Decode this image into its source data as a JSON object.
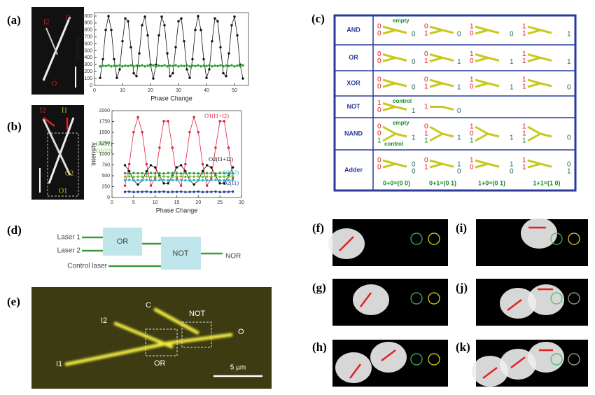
{
  "panel_labels": [
    "(a)",
    "(b)",
    "(c)",
    "(d)",
    "(e)",
    "(f)",
    "(g)",
    "(h)",
    "(i)",
    "(j)",
    "(k)"
  ],
  "chart_data": [
    {
      "type": "line",
      "xlabel": "Phase Change",
      "ylabel": "Intensity",
      "xlim": [
        0,
        55
      ],
      "xticks": [
        0,
        10,
        20,
        30,
        40,
        50
      ],
      "ylim": [
        0,
        1050
      ],
      "yticks": [
        0,
        100,
        200,
        300,
        400,
        500,
        600,
        700,
        800,
        900,
        1000
      ],
      "x": [
        2,
        3,
        4,
        5,
        6,
        7,
        8,
        9,
        10,
        11,
        12,
        13,
        14,
        15,
        16,
        17,
        18,
        19,
        20,
        21,
        22,
        23,
        24,
        25,
        26,
        27,
        28,
        29,
        30,
        31,
        32,
        33,
        34,
        35,
        36,
        37,
        38,
        39,
        40,
        41,
        42,
        43,
        44,
        45,
        46,
        47,
        48,
        49,
        50,
        51,
        52,
        53
      ],
      "series": [
        {
          "color": "#111111",
          "values": [
            109,
            378,
            800,
            1000,
            800,
            378,
            109,
            232,
            638,
            966,
            924,
            550,
            176,
            134,
            462,
            868,
            991,
            722,
            300,
            100,
            300,
            722,
            991,
            868,
            462,
            134,
            176,
            550,
            924,
            966,
            638,
            232,
            109,
            378,
            800,
            1000,
            800,
            378,
            109,
            232,
            638,
            966,
            924,
            550,
            176,
            134,
            462,
            868,
            991,
            722,
            300,
            100
          ]
        },
        {
          "color": "#22a02a",
          "values": [
            275,
            285,
            280,
            290,
            275,
            285,
            280,
            290,
            275,
            285,
            280,
            290,
            275,
            285,
            280,
            290,
            275,
            285,
            280,
            290,
            275,
            285,
            280,
            290,
            275,
            285,
            280,
            290,
            275,
            285,
            280,
            290,
            275,
            285,
            280,
            290,
            275,
            285,
            280,
            290,
            275,
            285,
            280,
            290,
            275,
            285,
            280,
            290,
            275,
            285,
            280,
            290
          ]
        }
      ]
    },
    {
      "type": "line",
      "xlabel": "Phase Change",
      "ylabel": "Intensity",
      "xlim": [
        0,
        30
      ],
      "xticks": [
        0,
        5,
        10,
        15,
        20,
        25,
        30
      ],
      "ylim": [
        0,
        2000
      ],
      "yticks": [
        0,
        250,
        500,
        750,
        1000,
        1250,
        1500,
        1750,
        2000
      ],
      "x": [
        3,
        4,
        5,
        6,
        7,
        8,
        9,
        10,
        11,
        12,
        13,
        14,
        15,
        16,
        17,
        18,
        19,
        20,
        21,
        22,
        23,
        24,
        25,
        26,
        27,
        28
      ],
      "series": [
        {
          "name": "O1(I1+I2)",
          "color": "#e0203a",
          "values": [
            273,
            766,
            1504,
            1850,
            1504,
            766,
            273,
            452,
            1146,
            1759,
            1758,
            1146,
            451,
            273,
            767,
            1504,
            1850,
            1504,
            766,
            273,
            452,
            1146,
            1759,
            1758,
            1146,
            451
          ]
        },
        {
          "name": "O2(I1+I2)",
          "color": "#111111",
          "values": [
            743,
            605,
            397,
            300,
            397,
            605,
            743,
            693,
            498,
            326,
            326,
            498,
            694,
            743,
            605,
            397,
            300,
            397,
            605,
            743,
            693,
            498,
            326,
            326,
            498,
            694
          ]
        },
        {
          "name": "O1(I1)",
          "color": "#2aa02a",
          "values": [
            560,
            555,
            565,
            560,
            560,
            555,
            565,
            560,
            560,
            555,
            565,
            560,
            560,
            555,
            565,
            560,
            560,
            555,
            565,
            560,
            560,
            555,
            565,
            560,
            560,
            555
          ]
        },
        {
          "name": "O1(I2)",
          "color": "#7ab83a",
          "values": [
            480,
            485,
            475,
            480,
            480,
            485,
            475,
            480,
            480,
            485,
            475,
            480,
            480,
            485,
            475,
            480,
            480,
            485,
            475,
            480,
            480,
            485,
            475,
            480,
            480,
            485
          ]
        },
        {
          "name": "O2(I2)",
          "color": "#2ab0c8",
          "values": [
            400,
            405,
            395,
            400,
            400,
            405,
            395,
            400,
            400,
            405,
            395,
            400,
            400,
            405,
            395,
            400,
            400,
            405,
            395,
            400,
            400,
            405,
            395,
            400,
            400,
            405
          ]
        },
        {
          "name": "O2(I1)",
          "color": "#2a3aa0",
          "values": [
            130,
            135,
            125,
            130,
            130,
            135,
            125,
            130,
            130,
            135,
            125,
            130,
            130,
            135,
            125,
            130,
            130,
            135,
            125,
            130,
            130,
            135,
            125,
            130,
            130,
            135
          ]
        }
      ]
    }
  ],
  "micrograph_a": {
    "labels": [
      "I2",
      "I1",
      "O"
    ]
  },
  "micrograph_b": {
    "labels": [
      "I2",
      "I1",
      "O2",
      "O1"
    ]
  },
  "table": {
    "rows": [
      {
        "label": "AND",
        "cells": [
          {
            "inputs": [
              "0",
              "0"
            ],
            "outputs": [
              "0"
            ],
            "notes": [
              "empty"
            ]
          },
          {
            "inputs": [
              "0",
              "1"
            ],
            "outputs": [
              "0"
            ]
          },
          {
            "inputs": [
              "1",
              "0"
            ],
            "outputs": [
              "0"
            ]
          },
          {
            "inputs": [
              "1",
              "1"
            ],
            "outputs": [
              "1"
            ]
          }
        ]
      },
      {
        "label": "OR",
        "cells": [
          {
            "inputs": [
              "0",
              "0"
            ],
            "outputs": [
              "0"
            ]
          },
          {
            "inputs": [
              "0",
              "1"
            ],
            "outputs": [
              "1"
            ]
          },
          {
            "inputs": [
              "1",
              "0"
            ],
            "outputs": [
              "1"
            ]
          },
          {
            "inputs": [
              "1",
              "1"
            ],
            "outputs": [
              "1"
            ]
          }
        ]
      },
      {
        "label": "XOR",
        "cells": [
          {
            "inputs": [
              "0",
              "0"
            ],
            "outputs": [
              "0"
            ]
          },
          {
            "inputs": [
              "0",
              "1"
            ],
            "outputs": [
              "1"
            ]
          },
          {
            "inputs": [
              "1",
              "0"
            ],
            "outputs": [
              "1"
            ]
          },
          {
            "inputs": [
              "1",
              "1"
            ],
            "outputs": [
              "0"
            ]
          }
        ]
      },
      {
        "label": "NOT",
        "cells": [
          {
            "inputs": [
              "1",
              "0"
            ],
            "outputs": [
              "1"
            ],
            "notes": [
              "control"
            ]
          },
          {
            "inputs": [
              "1"
            ],
            "outputs": [
              "0"
            ]
          }
        ]
      },
      {
        "label": "NAND",
        "cells": [
          {
            "inputs": [
              "0",
              "0",
              "1"
            ],
            "outputs": [
              "1"
            ],
            "notes": [
              "empty",
              "control"
            ]
          },
          {
            "inputs": [
              "0",
              "1",
              "1"
            ],
            "outputs": [
              "1"
            ]
          },
          {
            "inputs": [
              "1",
              "0",
              "1"
            ],
            "outputs": [
              "1"
            ]
          },
          {
            "inputs": [
              "1",
              "1",
              "1"
            ],
            "outputs": [
              "0"
            ]
          }
        ]
      },
      {
        "label": "Adder",
        "cells": [
          {
            "inputs": [
              "0",
              "0"
            ],
            "outputs": [
              "0",
              "0"
            ]
          },
          {
            "inputs": [
              "0",
              "1"
            ],
            "outputs": [
              "1",
              "0"
            ]
          },
          {
            "inputs": [
              "1",
              "0"
            ],
            "outputs": [
              "1",
              "0"
            ]
          },
          {
            "inputs": [
              "1",
              "1"
            ],
            "outputs": [
              "0",
              "1"
            ]
          }
        ],
        "sums": [
          "0+0=(0 0)",
          "0+1=(0 1)",
          "1+0=(0 1)",
          "1+1=(1 0)"
        ]
      }
    ]
  },
  "circuit": {
    "inputs": [
      "Laser 1",
      "Laser 2",
      "Control laser"
    ],
    "gates": [
      "OR",
      "NOT"
    ],
    "output": "NOR"
  },
  "micrograph_e": {
    "labels": [
      "C",
      "NOT",
      "I2",
      "O",
      "OR",
      "I1"
    ],
    "scale": "5 µm"
  }
}
